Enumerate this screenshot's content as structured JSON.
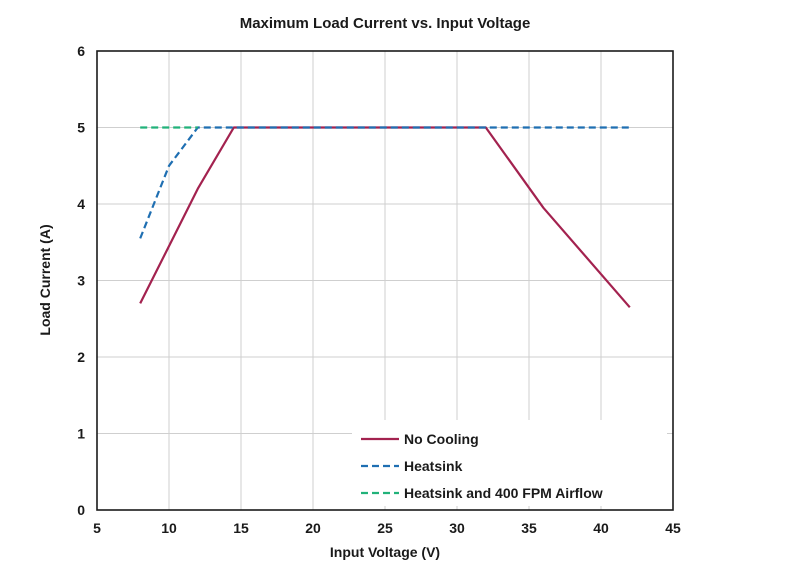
{
  "chart_data": {
    "type": "line",
    "title": "Maximum Load Current vs. Input Voltage",
    "xlabel": "Input Voltage (V)",
    "ylabel": "Load Current (A)",
    "xlim": [
      5,
      45
    ],
    "ylim": [
      0,
      6
    ],
    "xticks": [
      5,
      10,
      15,
      20,
      25,
      30,
      35,
      40,
      45
    ],
    "yticks": [
      0,
      1,
      2,
      3,
      4,
      5,
      6
    ],
    "grid": true,
    "legend_position": "bottom-right",
    "series": [
      {
        "name": "No Cooling",
        "color": "#a3224f",
        "style": "solid",
        "points": [
          [
            8,
            2.7
          ],
          [
            10,
            3.45
          ],
          [
            12,
            4.2
          ],
          [
            14.5,
            5.0
          ],
          [
            32,
            5.0
          ],
          [
            36,
            3.95
          ],
          [
            42,
            2.65
          ]
        ]
      },
      {
        "name": "Heatsink",
        "color": "#1f6fb2",
        "style": "dashed",
        "points": [
          [
            8,
            3.55
          ],
          [
            10,
            4.5
          ],
          [
            12,
            5.0
          ],
          [
            42,
            5.0
          ]
        ]
      },
      {
        "name": "Heatsink and 400 FPM Airflow",
        "color": "#21b27a",
        "style": "dashed",
        "points": [
          [
            8,
            5.0
          ],
          [
            12,
            5.0
          ]
        ]
      }
    ]
  }
}
